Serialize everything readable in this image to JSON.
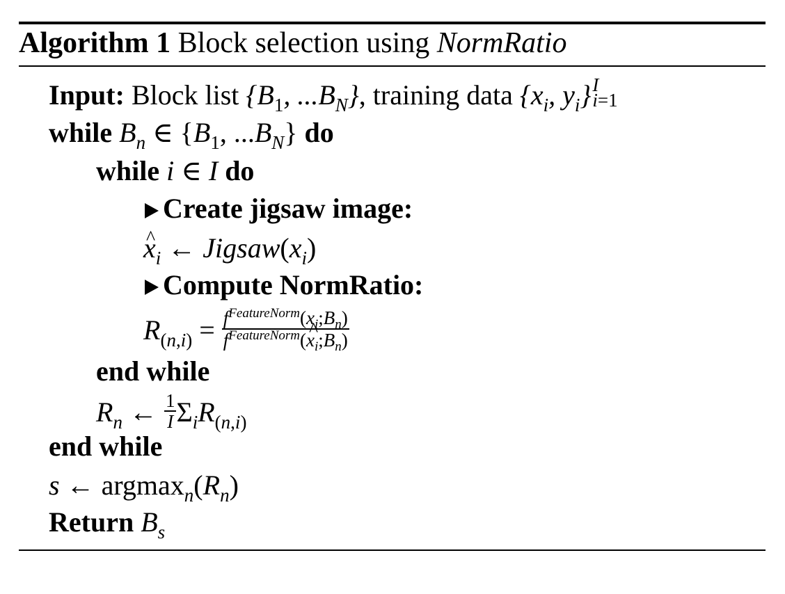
{
  "caption": {
    "label": "Algorithm 1",
    "text": "Block selection using",
    "method": "NormRatio"
  },
  "lines": {
    "input_kw": "Input:",
    "input_text_1": "Block list",
    "input_blocks": "{B1, ...BN}",
    "input_text_2": ", training data",
    "input_data": "{xi, yi}",
    "input_data_sup": "I",
    "input_data_sub": "i=1",
    "while1_kw": "while",
    "while1_cond": "Bn ∈ {B1, ...BN}",
    "do1_kw": "do",
    "while2_kw": "while",
    "while2_cond": "i ∈ I",
    "do2_kw": "do",
    "comment1": "Create jigsaw image:",
    "jigsaw_stmt": "x̂i ← Jigsaw(xi)",
    "comment2": "Compute NormRatio:",
    "normratio_lhs": "R(n,i) =",
    "normratio_num": "f FeatureNorm(xi;Bn)",
    "normratio_den": "f FeatureNorm(x̂i;Bn)",
    "endwhile2_kw": "end while",
    "mean_stmt": "Rn ← 1/I ΣiR(n,i)",
    "endwhile1_kw": "end while",
    "argmax_stmt": "s ← argmaxn(Rn)",
    "return_kw": "Return",
    "return_val": "Bs"
  }
}
